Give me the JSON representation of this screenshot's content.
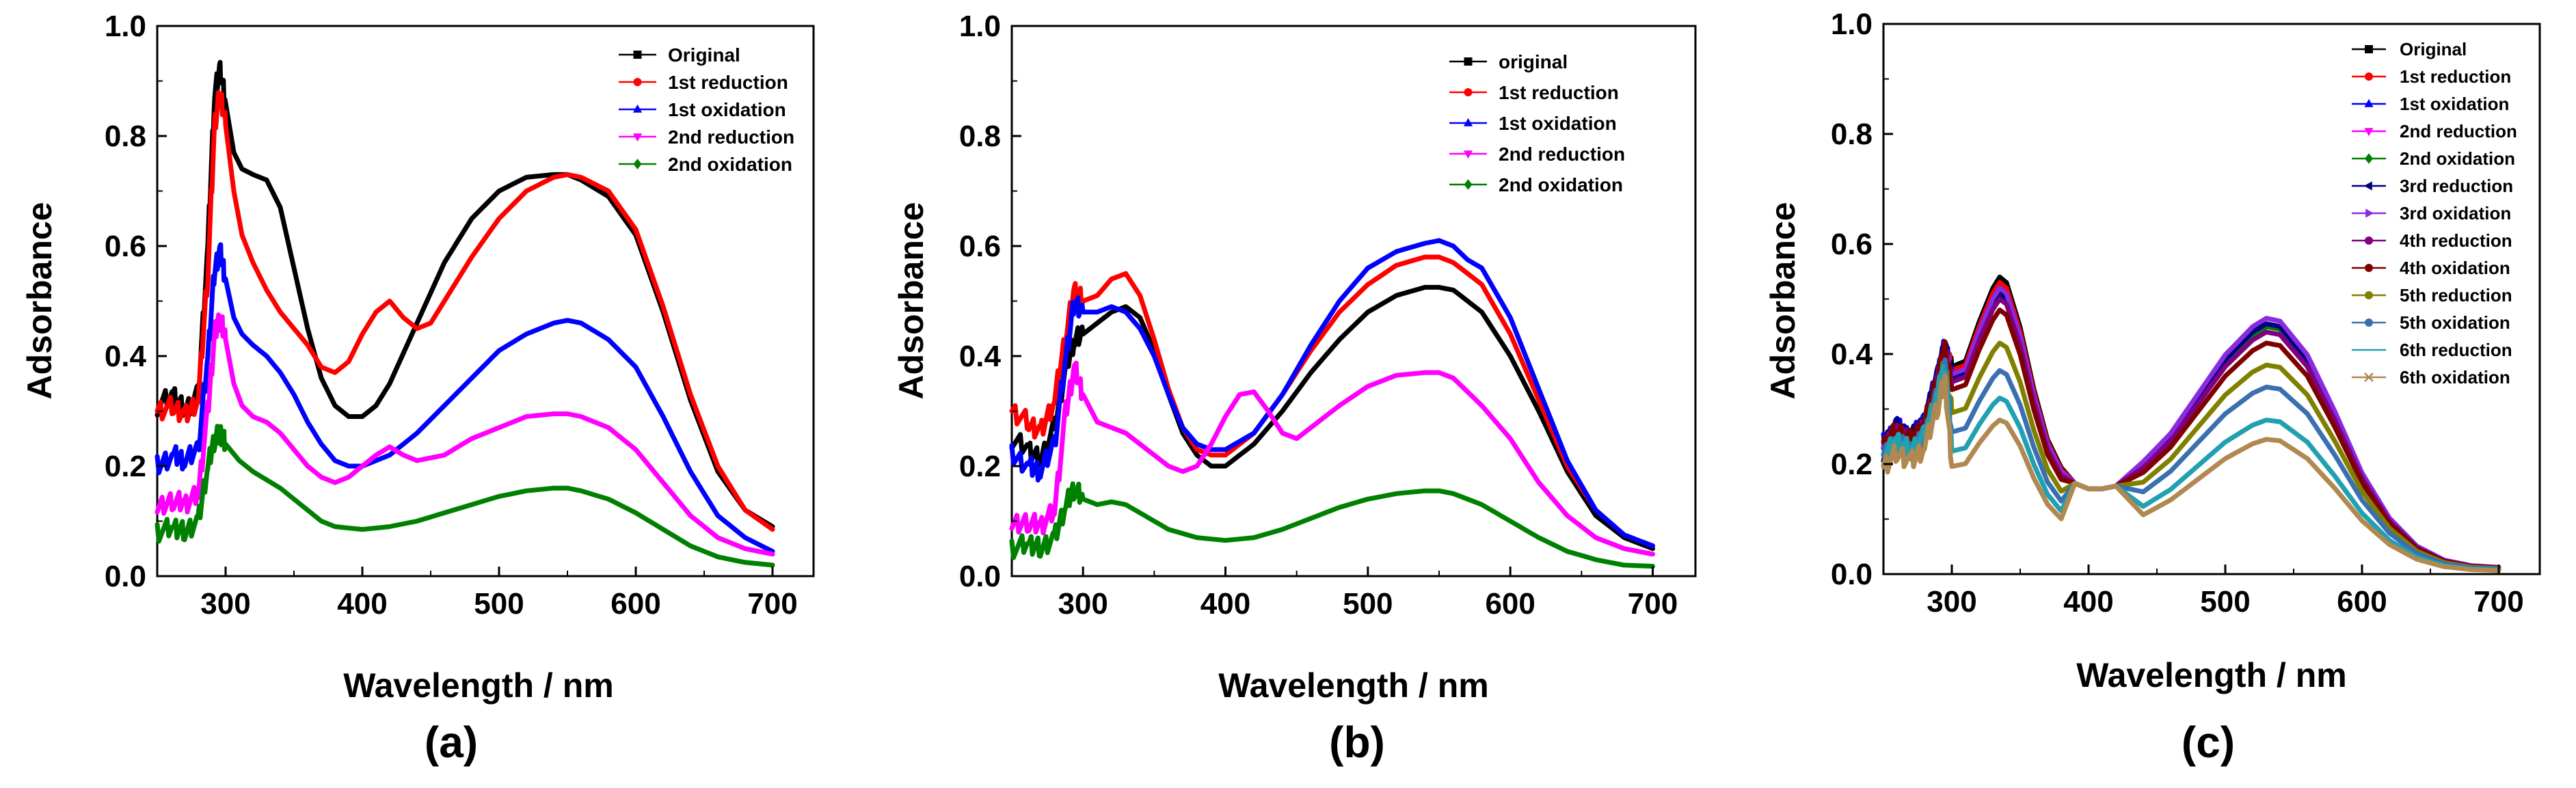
{
  "chart_data": [
    {
      "id": "a",
      "type": "line",
      "panel_label": "(a)",
      "xlabel": "Wavelength / nm",
      "ylabel": "Adsorbance",
      "xlim": [
        250,
        730
      ],
      "ylim": [
        0.0,
        1.0
      ],
      "xticks": [
        "300",
        "400",
        "500",
        "600",
        "700"
      ],
      "yticks": [
        "0.0",
        "0.2",
        "0.4",
        "0.6",
        "0.8",
        "1.0"
      ],
      "legend_position": "top-right",
      "series": [
        {
          "name": "Original",
          "color": "#000000",
          "marker": "square",
          "x": [
            250,
            262,
            270,
            280,
            287,
            292,
            296,
            300,
            306,
            312,
            320,
            330,
            340,
            350,
            360,
            370,
            380,
            390,
            400,
            410,
            420,
            440,
            460,
            480,
            500,
            520,
            540,
            550,
            560,
            580,
            600,
            620,
            640,
            660,
            680,
            700
          ],
          "y": [
            0.31,
            0.33,
            0.3,
            0.33,
            0.6,
            0.88,
            0.92,
            0.86,
            0.77,
            0.74,
            0.73,
            0.72,
            0.67,
            0.56,
            0.45,
            0.36,
            0.31,
            0.29,
            0.29,
            0.31,
            0.35,
            0.46,
            0.57,
            0.65,
            0.7,
            0.725,
            0.73,
            0.73,
            0.72,
            0.69,
            0.62,
            0.48,
            0.32,
            0.19,
            0.12,
            0.09
          ]
        },
        {
          "name": "1st reduction",
          "color": "#ff0000",
          "marker": "circle",
          "x": [
            250,
            262,
            270,
            280,
            287,
            292,
            296,
            300,
            306,
            312,
            320,
            330,
            340,
            350,
            360,
            370,
            380,
            390,
            400,
            410,
            420,
            430,
            440,
            450,
            460,
            480,
            500,
            520,
            540,
            550,
            560,
            580,
            600,
            620,
            640,
            660,
            680,
            700
          ],
          "y": [
            0.3,
            0.31,
            0.29,
            0.32,
            0.55,
            0.82,
            0.88,
            0.82,
            0.7,
            0.62,
            0.57,
            0.52,
            0.48,
            0.45,
            0.42,
            0.38,
            0.37,
            0.39,
            0.44,
            0.48,
            0.5,
            0.47,
            0.45,
            0.46,
            0.5,
            0.58,
            0.65,
            0.7,
            0.725,
            0.73,
            0.725,
            0.7,
            0.63,
            0.49,
            0.33,
            0.2,
            0.12,
            0.085
          ]
        },
        {
          "name": "1st oxidation",
          "color": "#0000ff",
          "marker": "triangle-up",
          "x": [
            250,
            262,
            270,
            280,
            287,
            292,
            296,
            300,
            306,
            312,
            320,
            330,
            340,
            350,
            360,
            370,
            380,
            390,
            400,
            420,
            440,
            460,
            480,
            500,
            520,
            540,
            550,
            560,
            580,
            600,
            620,
            640,
            660,
            680,
            700
          ],
          "y": [
            0.2,
            0.22,
            0.21,
            0.23,
            0.4,
            0.56,
            0.59,
            0.54,
            0.47,
            0.44,
            0.42,
            0.4,
            0.37,
            0.33,
            0.28,
            0.24,
            0.21,
            0.2,
            0.2,
            0.22,
            0.26,
            0.31,
            0.36,
            0.41,
            0.44,
            0.46,
            0.465,
            0.46,
            0.43,
            0.38,
            0.29,
            0.19,
            0.11,
            0.07,
            0.045
          ]
        },
        {
          "name": "2nd reduction",
          "color": "#ff00ff",
          "marker": "triangle-down",
          "x": [
            250,
            262,
            270,
            280,
            287,
            292,
            296,
            300,
            306,
            312,
            320,
            330,
            340,
            350,
            360,
            370,
            380,
            390,
            400,
            410,
            420,
            430,
            440,
            460,
            480,
            500,
            520,
            540,
            550,
            560,
            580,
            600,
            620,
            640,
            660,
            680,
            700
          ],
          "y": [
            0.12,
            0.14,
            0.13,
            0.15,
            0.3,
            0.44,
            0.47,
            0.43,
            0.35,
            0.31,
            0.29,
            0.28,
            0.26,
            0.23,
            0.2,
            0.18,
            0.17,
            0.18,
            0.2,
            0.22,
            0.235,
            0.22,
            0.21,
            0.22,
            0.25,
            0.27,
            0.29,
            0.295,
            0.295,
            0.29,
            0.27,
            0.23,
            0.17,
            0.11,
            0.07,
            0.05,
            0.04
          ]
        },
        {
          "name": "2nd oxidation",
          "color": "#008000",
          "marker": "diamond",
          "x": [
            250,
            262,
            270,
            280,
            287,
            292,
            296,
            300,
            310,
            320,
            330,
            340,
            350,
            360,
            370,
            380,
            400,
            420,
            440,
            460,
            480,
            500,
            520,
            540,
            550,
            560,
            580,
            600,
            620,
            640,
            660,
            680,
            700
          ],
          "y": [
            0.08,
            0.09,
            0.08,
            0.1,
            0.2,
            0.25,
            0.26,
            0.24,
            0.21,
            0.19,
            0.175,
            0.16,
            0.14,
            0.12,
            0.1,
            0.09,
            0.085,
            0.09,
            0.1,
            0.115,
            0.13,
            0.145,
            0.155,
            0.16,
            0.16,
            0.155,
            0.14,
            0.115,
            0.085,
            0.055,
            0.035,
            0.025,
            0.02
          ]
        }
      ]
    },
    {
      "id": "b",
      "type": "line",
      "panel_label": "(b)",
      "xlabel": "Wavelength / nm",
      "ylabel": "Adsorbance",
      "xlim": [
        250,
        730
      ],
      "ylim": [
        0.0,
        1.0
      ],
      "xticks": [
        "300",
        "400",
        "500",
        "600",
        "700"
      ],
      "yticks": [
        "0.0",
        "0.2",
        "0.4",
        "0.6",
        "0.8",
        "1.0"
      ],
      "legend_position": "top-right",
      "series": [
        {
          "name": "original",
          "color": "#000000",
          "marker": "square",
          "x": [
            250,
            262,
            270,
            280,
            288,
            294,
            300,
            310,
            320,
            330,
            340,
            350,
            360,
            370,
            380,
            390,
            400,
            420,
            440,
            460,
            480,
            500,
            520,
            540,
            550,
            560,
            580,
            600,
            620,
            640,
            660,
            680,
            700
          ],
          "y": [
            0.25,
            0.23,
            0.21,
            0.27,
            0.38,
            0.43,
            0.44,
            0.46,
            0.48,
            0.49,
            0.47,
            0.41,
            0.33,
            0.26,
            0.22,
            0.2,
            0.2,
            0.24,
            0.3,
            0.37,
            0.43,
            0.48,
            0.51,
            0.525,
            0.525,
            0.52,
            0.48,
            0.4,
            0.3,
            0.19,
            0.11,
            0.07,
            0.05
          ]
        },
        {
          "name": "1st reduction",
          "color": "#ff0000",
          "marker": "circle",
          "x": [
            250,
            262,
            270,
            280,
            288,
            294,
            300,
            310,
            320,
            330,
            340,
            350,
            360,
            370,
            380,
            390,
            400,
            420,
            440,
            460,
            480,
            500,
            520,
            540,
            550,
            560,
            580,
            600,
            620,
            640,
            660,
            680,
            700
          ],
          "y": [
            0.3,
            0.28,
            0.26,
            0.32,
            0.44,
            0.52,
            0.5,
            0.51,
            0.54,
            0.55,
            0.51,
            0.43,
            0.34,
            0.27,
            0.23,
            0.22,
            0.22,
            0.26,
            0.33,
            0.41,
            0.48,
            0.53,
            0.565,
            0.58,
            0.58,
            0.57,
            0.53,
            0.44,
            0.32,
            0.2,
            0.12,
            0.075,
            0.055
          ]
        },
        {
          "name": "1st oxidation",
          "color": "#0000ff",
          "marker": "triangle-up",
          "x": [
            250,
            262,
            270,
            280,
            288,
            294,
            300,
            310,
            320,
            330,
            340,
            350,
            360,
            370,
            380,
            390,
            400,
            420,
            440,
            460,
            480,
            500,
            520,
            540,
            550,
            560,
            570,
            580,
            600,
            620,
            640,
            660,
            680,
            700
          ],
          "y": [
            0.22,
            0.2,
            0.19,
            0.24,
            0.4,
            0.5,
            0.48,
            0.48,
            0.49,
            0.48,
            0.45,
            0.4,
            0.33,
            0.27,
            0.24,
            0.23,
            0.23,
            0.26,
            0.33,
            0.42,
            0.5,
            0.56,
            0.59,
            0.605,
            0.61,
            0.6,
            0.575,
            0.56,
            0.47,
            0.34,
            0.21,
            0.12,
            0.075,
            0.055
          ]
        },
        {
          "name": "2nd reduction",
          "color": "#ff00ff",
          "marker": "triangle-down",
          "x": [
            250,
            262,
            270,
            280,
            288,
            294,
            300,
            310,
            320,
            330,
            340,
            350,
            360,
            370,
            380,
            390,
            400,
            410,
            420,
            430,
            440,
            450,
            460,
            480,
            500,
            520,
            540,
            550,
            560,
            580,
            600,
            620,
            640,
            660,
            680,
            700
          ],
          "y": [
            0.09,
            0.1,
            0.09,
            0.12,
            0.3,
            0.38,
            0.33,
            0.28,
            0.27,
            0.26,
            0.24,
            0.22,
            0.2,
            0.19,
            0.2,
            0.24,
            0.29,
            0.33,
            0.335,
            0.3,
            0.26,
            0.25,
            0.27,
            0.31,
            0.345,
            0.365,
            0.37,
            0.37,
            0.36,
            0.31,
            0.25,
            0.17,
            0.11,
            0.07,
            0.05,
            0.04
          ]
        },
        {
          "name": "2nd oxidation",
          "color": "#008000",
          "marker": "diamond",
          "x": [
            250,
            262,
            270,
            280,
            288,
            294,
            300,
            310,
            320,
            330,
            340,
            350,
            360,
            380,
            400,
            420,
            440,
            460,
            480,
            500,
            520,
            540,
            550,
            560,
            580,
            600,
            620,
            640,
            660,
            680,
            700
          ],
          "y": [
            0.05,
            0.06,
            0.05,
            0.07,
            0.13,
            0.16,
            0.14,
            0.13,
            0.135,
            0.13,
            0.115,
            0.1,
            0.085,
            0.07,
            0.065,
            0.07,
            0.085,
            0.105,
            0.125,
            0.14,
            0.15,
            0.155,
            0.155,
            0.15,
            0.13,
            0.1,
            0.07,
            0.045,
            0.03,
            0.02,
            0.018
          ]
        }
      ]
    },
    {
      "id": "c",
      "type": "line",
      "panel_label": "(c)",
      "xlabel": "Wavelength / nm",
      "ylabel": "Adsorbance",
      "xlim": [
        250,
        730
      ],
      "ylim": [
        0.0,
        1.0
      ],
      "xticks": [
        "300",
        "400",
        "500",
        "600",
        "700"
      ],
      "yticks": [
        "0.0",
        "0.2",
        "0.4",
        "0.6",
        "0.8",
        "1.0"
      ],
      "legend_position": "top-right",
      "common_x": [
        250,
        260,
        270,
        280,
        290,
        295,
        300,
        310,
        320,
        330,
        335,
        340,
        350,
        360,
        370,
        380,
        390,
        400,
        410,
        420,
        440,
        460,
        480,
        500,
        520,
        530,
        540,
        560,
        580,
        600,
        620,
        640,
        660,
        680,
        700
      ],
      "common_shape": [
        0.23,
        0.26,
        0.24,
        0.27,
        0.36,
        0.41,
        0.37,
        0.38,
        0.45,
        0.51,
        0.53,
        0.52,
        0.44,
        0.33,
        0.24,
        0.19,
        0.165,
        0.155,
        0.155,
        0.16,
        0.2,
        0.25,
        0.32,
        0.39,
        0.44,
        0.455,
        0.45,
        0.39,
        0.29,
        0.18,
        0.1,
        0.05,
        0.025,
        0.015,
        0.012
      ],
      "series": [
        {
          "name": "Original",
          "color": "#000000",
          "marker": "square",
          "peak1": 0.54,
          "peak2": 0.45
        },
        {
          "name": "1st reduction",
          "color": "#ff0000",
          "marker": "circle",
          "peak1": 0.53,
          "peak2": 0.45
        },
        {
          "name": "1st oxidation",
          "color": "#0000ff",
          "marker": "triangle-up",
          "peak1": 0.52,
          "peak2": 0.45
        },
        {
          "name": "2nd reduction",
          "color": "#ff00ff",
          "marker": "triangle-down",
          "peak1": 0.515,
          "peak2": 0.455
        },
        {
          "name": "2nd oxidation",
          "color": "#008000",
          "marker": "diamond",
          "peak1": 0.51,
          "peak2": 0.45
        },
        {
          "name": "3rd reduction",
          "color": "#000080",
          "marker": "triangle-left",
          "peak1": 0.51,
          "peak2": 0.455
        },
        {
          "name": "3rd oxidation",
          "color": "#8a2be2",
          "marker": "triangle-right",
          "peak1": 0.52,
          "peak2": 0.465
        },
        {
          "name": "4th reduction",
          "color": "#800080",
          "marker": "hexagon",
          "peak1": 0.5,
          "peak2": 0.44
        },
        {
          "name": "4th oxidation",
          "color": "#800000",
          "marker": "star",
          "peak1": 0.48,
          "peak2": 0.42
        },
        {
          "name": "5th reduction",
          "color": "#808000",
          "marker": "pentagon",
          "peak1": 0.42,
          "peak2": 0.38
        },
        {
          "name": "5th oxidation",
          "color": "#3a6fb0",
          "marker": "hexagon",
          "peak1": 0.37,
          "peak2": 0.34
        },
        {
          "name": "6th reduction",
          "color": "#20a0b0",
          "marker": "minus",
          "peak1": 0.32,
          "peak2": 0.28
        },
        {
          "name": "6th oxidation",
          "color": "#b08850",
          "marker": "x",
          "peak1": 0.28,
          "peak2": 0.245
        }
      ]
    }
  ]
}
